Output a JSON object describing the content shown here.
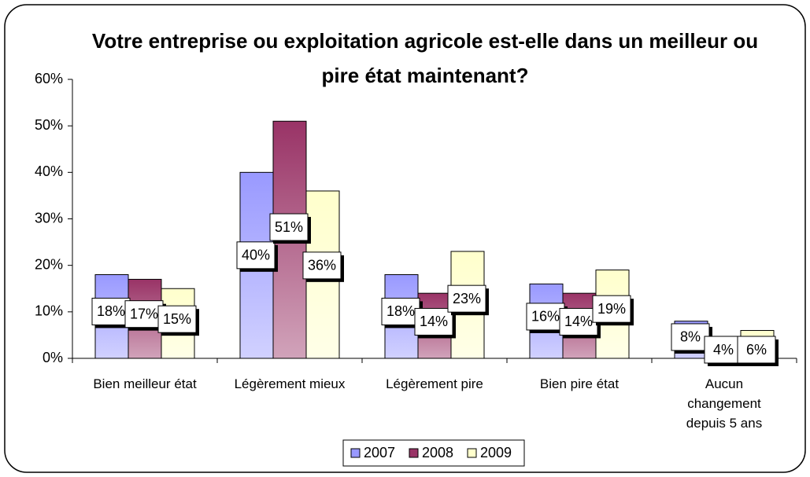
{
  "chart_data": {
    "type": "bar",
    "title": "Votre entreprise ou exploitation agricole est-elle dans un meilleur ou pire état maintenant?",
    "categories": [
      "Bien meilleur état",
      "Légèrement mieux",
      "Légèrement pire",
      "Bien pire état",
      "Aucun changement depuis 5 ans"
    ],
    "series": [
      {
        "name": "2007",
        "color": "#9999ff",
        "values": [
          18,
          40,
          18,
          16,
          8
        ],
        "value_labels": [
          "18%",
          "40%",
          "18%",
          "16%",
          "8%"
        ]
      },
      {
        "name": "2008",
        "color": "#993366",
        "values": [
          17,
          51,
          14,
          14,
          4
        ],
        "value_labels": [
          "17%",
          "51%",
          "14%",
          "14%",
          "4%"
        ]
      },
      {
        "name": "2009",
        "color": "#ffffcc",
        "values": [
          15,
          36,
          23,
          19,
          6
        ],
        "value_labels": [
          "15%",
          "36%",
          "23%",
          "19%",
          "6%"
        ]
      }
    ],
    "ylim": [
      0,
      60
    ],
    "yticks": [
      {
        "value": 0,
        "label": "0%"
      },
      {
        "value": 10,
        "label": "10%"
      },
      {
        "value": 20,
        "label": "20%"
      },
      {
        "value": 30,
        "label": "30%"
      },
      {
        "value": 40,
        "label": "40%"
      },
      {
        "value": 50,
        "label": "50%"
      },
      {
        "value": 60,
        "label": "60%"
      }
    ],
    "grid": false,
    "legend": "bottom"
  }
}
